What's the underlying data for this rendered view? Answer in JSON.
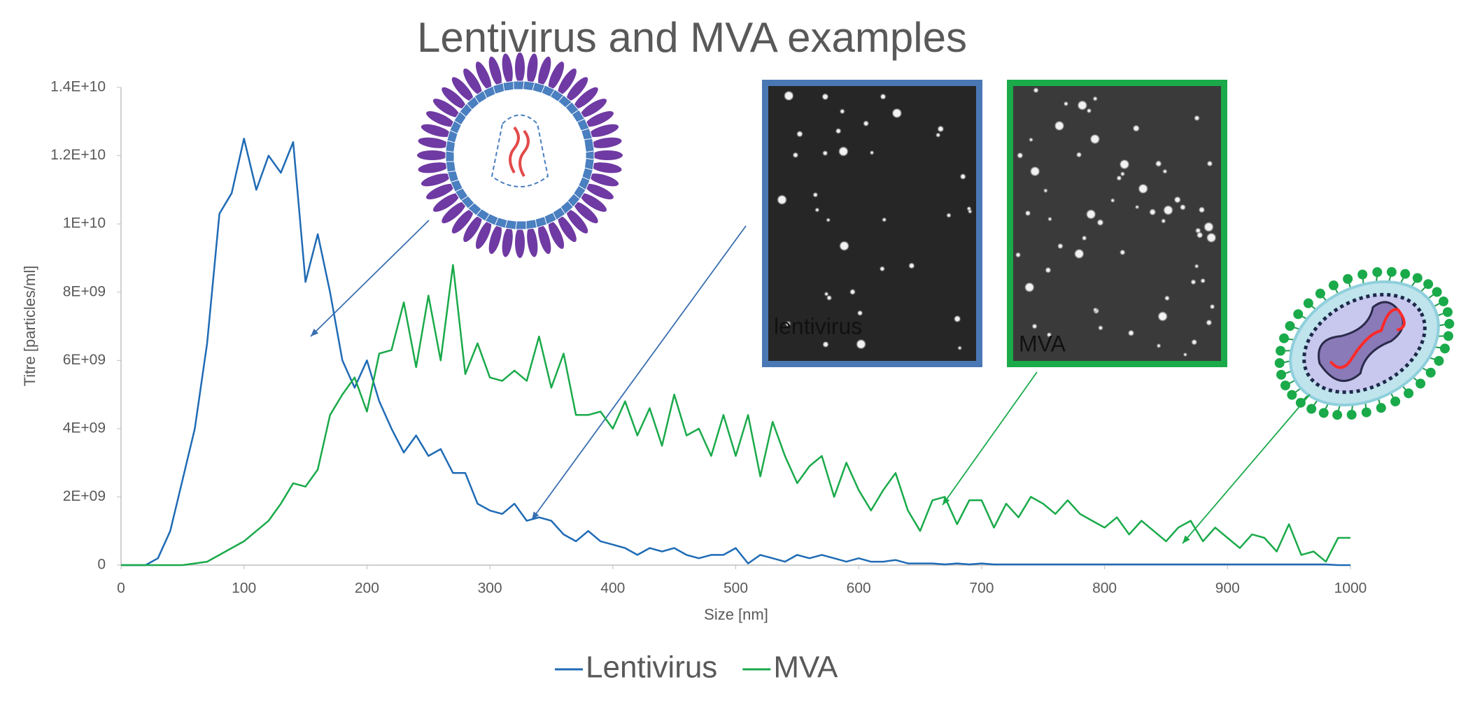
{
  "chart_data": {
    "type": "line",
    "title": "Lentivirus and MVA examples",
    "x_label": "Size [nm]",
    "y_label": "Titre [particles/ml]",
    "x": [
      0,
      10,
      20,
      30,
      40,
      50,
      60,
      70,
      80,
      90,
      100,
      110,
      120,
      130,
      140,
      150,
      160,
      170,
      180,
      190,
      200,
      210,
      220,
      230,
      240,
      250,
      260,
      270,
      280,
      290,
      300,
      310,
      320,
      330,
      340,
      350,
      360,
      370,
      380,
      390,
      400,
      410,
      420,
      430,
      440,
      450,
      460,
      470,
      480,
      490,
      500,
      510,
      520,
      530,
      540,
      550,
      560,
      570,
      580,
      590,
      600,
      610,
      620,
      630,
      640,
      650,
      660,
      670,
      680,
      690,
      700,
      710,
      720,
      730,
      740,
      750,
      760,
      770,
      780,
      790,
      800,
      810,
      820,
      830,
      840,
      850,
      860,
      870,
      880,
      890,
      900,
      910,
      920,
      930,
      940,
      950,
      960,
      970,
      980,
      990,
      1000
    ],
    "series": [
      {
        "name": "Lentivirus",
        "color": "#1f6bb5",
        "values": [
          0,
          0,
          0,
          200000000.0,
          1000000000.0,
          2500000000.0,
          4000000000.0,
          6500000000.0,
          10300000000.0,
          10900000000.0,
          12500000000.0,
          11000000000.0,
          12000000000.0,
          11500000000.0,
          12400000000.0,
          8300000000.0,
          9700000000.0,
          8000000000.0,
          6000000000.0,
          5200000000.0,
          6000000000.0,
          4800000000.0,
          4000000000.0,
          3300000000.0,
          3800000000.0,
          3200000000.0,
          3400000000.0,
          2700000000.0,
          2700000000.0,
          1800000000.0,
          1600000000.0,
          1500000000.0,
          1800000000.0,
          1300000000.0,
          1400000000.0,
          1300000000.0,
          900000000.0,
          700000000.0,
          1000000000.0,
          700000000.0,
          600000000.0,
          500000000.0,
          300000000.0,
          500000000.0,
          400000000.0,
          500000000.0,
          300000000.0,
          200000000.0,
          300000000.0,
          300000000.0,
          500000000.0,
          50000000.0,
          300000000.0,
          200000000.0,
          100000000.0,
          300000000.0,
          200000000.0,
          300000000.0,
          200000000.0,
          100000000.0,
          200000000.0,
          100000000.0,
          100000000.0,
          150000000.0,
          50000000.0,
          50000000.0,
          50000000.0,
          20000000.0,
          50000000.0,
          20000000.0,
          50000000.0,
          20000000.0,
          20000000.0,
          20000000.0,
          20000000.0,
          20000000.0,
          20000000.0,
          20000000.0,
          20000000.0,
          20000000.0,
          20000000.0,
          20000000.0,
          20000000.0,
          20000000.0,
          20000000.0,
          20000000.0,
          20000000.0,
          20000000.0,
          20000000.0,
          20000000.0,
          20000000.0,
          20000000.0,
          20000000.0,
          20000000.0,
          20000000.0,
          20000000.0,
          20000000.0,
          20000000.0,
          20000000.0,
          0,
          0
        ]
      },
      {
        "name": "MVA",
        "color": "#1aaa4a",
        "values": [
          0,
          0,
          0,
          0,
          0,
          0,
          50000000.0,
          100000000.0,
          300000000.0,
          500000000.0,
          700000000.0,
          1000000000.0,
          1300000000.0,
          1800000000.0,
          2400000000.0,
          2300000000.0,
          2800000000.0,
          4400000000.0,
          5000000000.0,
          5500000000.0,
          4500000000.0,
          6200000000.0,
          6300000000.0,
          7700000000.0,
          5800000000.0,
          7900000000.0,
          6000000000.0,
          8800000000.0,
          5600000000.0,
          6500000000.0,
          5500000000.0,
          5400000000.0,
          5700000000.0,
          5400000000.0,
          6700000000.0,
          5200000000.0,
          6200000000.0,
          4400000000.0,
          4400000000.0,
          4500000000.0,
          4000000000.0,
          4800000000.0,
          3800000000.0,
          4600000000.0,
          3500000000.0,
          5000000000.0,
          3800000000.0,
          4000000000.0,
          3200000000.0,
          4400000000.0,
          3200000000.0,
          4400000000.0,
          2600000000.0,
          4200000000.0,
          3200000000.0,
          2400000000.0,
          2900000000.0,
          3200000000.0,
          2000000000.0,
          3000000000.0,
          2200000000.0,
          1600000000.0,
          2200000000.0,
          2700000000.0,
          1600000000.0,
          1000000000.0,
          1900000000.0,
          2000000000.0,
          1200000000.0,
          1900000000.0,
          1900000000.0,
          1100000000.0,
          1800000000.0,
          1400000000.0,
          2000000000.0,
          1800000000.0,
          1500000000.0,
          1900000000.0,
          1500000000.0,
          1300000000.0,
          1100000000.0,
          1400000000.0,
          900000000.0,
          1300000000.0,
          1000000000.0,
          700000000.0,
          1100000000.0,
          1300000000.0,
          700000000.0,
          1100000000.0,
          800000000.0,
          500000000.0,
          900000000.0,
          800000000.0,
          400000000.0,
          1200000000.0,
          300000000.0,
          400000000.0,
          100000000.0,
          800000000.0,
          800000000.0
        ]
      }
    ],
    "xlim": [
      0,
      1000
    ],
    "xticks": [
      0,
      100,
      200,
      300,
      400,
      500,
      600,
      700,
      800,
      900,
      1000
    ],
    "ylim": [
      0,
      14000000000.0
    ],
    "yticks": [
      0,
      {
        "value": 2000000000.0,
        "label": "2E+09"
      },
      {
        "value": 4000000000.0,
        "label": "4E+09"
      },
      {
        "value": 6000000000.0,
        "label": "6E+09"
      },
      {
        "value": 8000000000.0,
        "label": "8E+09"
      },
      {
        "value": 10000000000.0,
        "label": "1E+10"
      },
      {
        "value": 12000000000.0,
        "label": "1.2E+10"
      },
      {
        "value": 14000000000.0,
        "label": "1.4E+10"
      }
    ],
    "grid": false,
    "legend": "bottom"
  },
  "insets": [
    {
      "label": "lentivirus"
    },
    {
      "label": "MVA"
    }
  ]
}
